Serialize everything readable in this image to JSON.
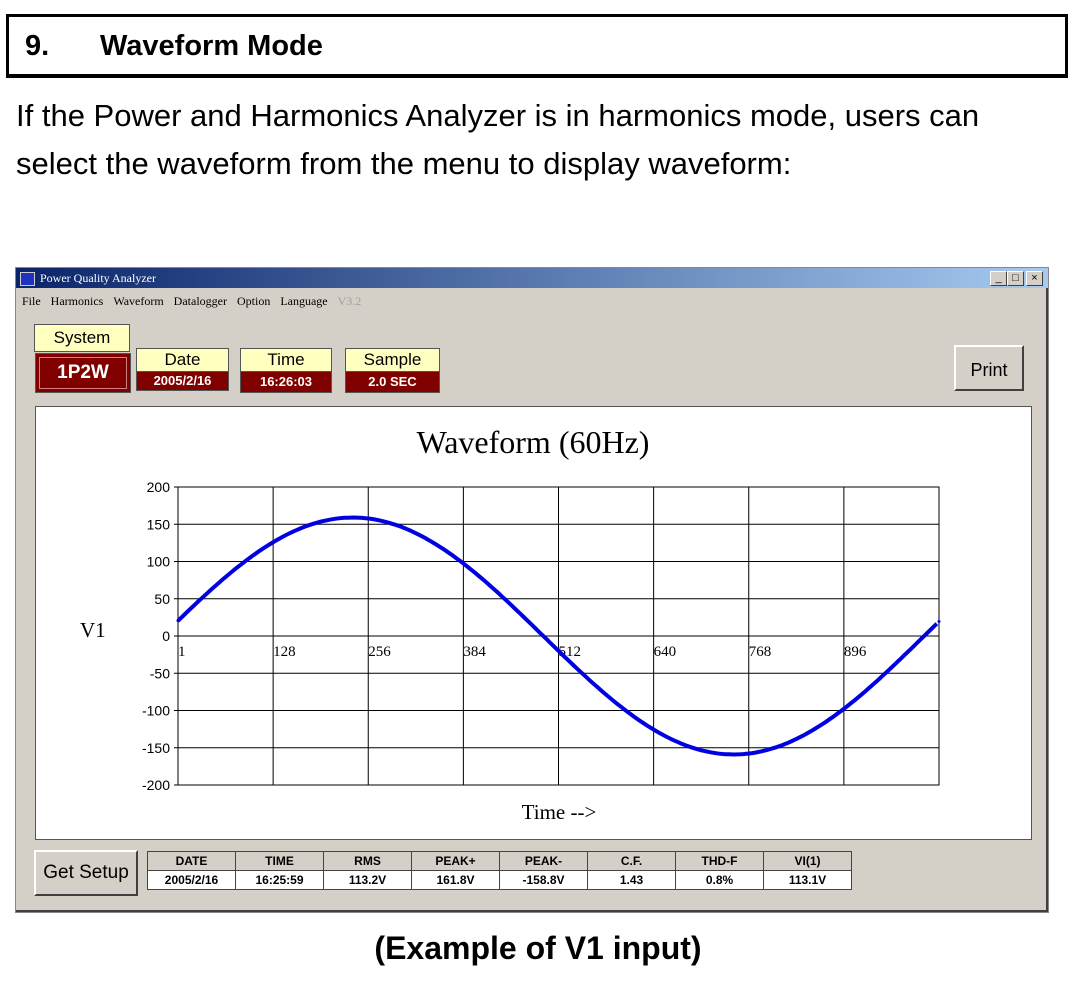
{
  "section": {
    "number": "9.",
    "title": "Waveform Mode"
  },
  "paragraph": "If the Power and Harmonics Analyzer is in harmonics mode, users can select the waveform from the menu to display waveform:",
  "window": {
    "title": "Power Quality Analyzer",
    "controls": {
      "minimize": "_",
      "maximize": "□",
      "close": "×"
    },
    "menu": [
      "File",
      "Harmonics",
      "Waveform",
      "Datalogger",
      "Option",
      "Language",
      "V3.2"
    ],
    "system": {
      "label": "System",
      "value": "1P2W"
    },
    "date": {
      "label": "Date",
      "value": "2005/2/16"
    },
    "time": {
      "label": "Time",
      "value": "16:26:03"
    },
    "sample": {
      "label": "Sample",
      "value": "2.0 SEC"
    },
    "print_label": "Print",
    "get_setup_label": "Get Setup",
    "stats": {
      "headers": [
        "DATE",
        "TIME",
        "RMS",
        "PEAK+",
        "PEAK-",
        "C.F.",
        "THD-F",
        "VI(1)"
      ],
      "values": [
        "2005/2/16",
        "16:25:59",
        "113.2V",
        "161.8V",
        "-158.8V",
        "1.43",
        "0.8%",
        "113.1V"
      ]
    }
  },
  "chart_data": {
    "type": "line",
    "title": "Waveform (60Hz)",
    "xlabel": "Time -->",
    "ylabel": "V1",
    "xlim": [
      1,
      1024
    ],
    "ylim": [
      -200,
      200
    ],
    "xticks": [
      1,
      128,
      256,
      384,
      512,
      640,
      768,
      896
    ],
    "yticks": [
      200,
      150,
      100,
      50,
      0,
      -50,
      -100,
      -150,
      -200
    ],
    "grid": true,
    "series": [
      {
        "color": "#0000e0",
        "x": [
          1,
          64,
          128,
          192,
          256,
          320,
          384,
          448,
          512,
          576,
          640,
          704,
          768,
          832,
          896,
          960,
          1024
        ],
        "y": [
          20.5,
          78.3,
          125.3,
          153.2,
          157.8,
          138.4,
          97.9,
          42.5,
          -19.4,
          -78.3,
          -125.3,
          -153.2,
          -157.8,
          -138.4,
          -97.9,
          -42.5,
          19.4
        ]
      }
    ]
  },
  "caption": "(Example of V1 input)"
}
